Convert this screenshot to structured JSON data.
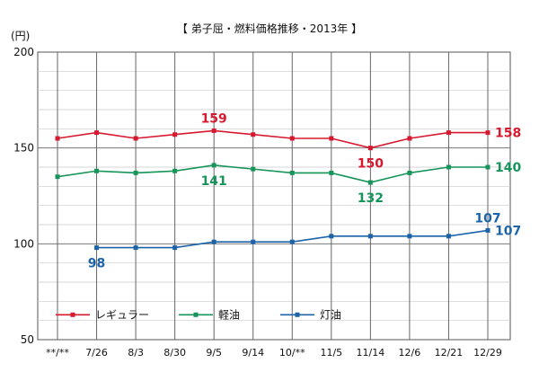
{
  "chart_data": {
    "type": "line",
    "title": "【 弟子屈・燃料価格推移・2013年 】",
    "ylabel": "(円)",
    "xlabel": "",
    "ylim": [
      50,
      200
    ],
    "yticks": [
      50,
      100,
      150,
      200
    ],
    "grid": true,
    "legend_position": "bottom-left",
    "categories": [
      "**/**",
      "7/26",
      "8/3",
      "8/30",
      "9/5",
      "9/14",
      "10/**",
      "11/5",
      "11/14",
      "12/6",
      "12/21",
      "12/29"
    ],
    "series": [
      {
        "name": "レギュラー",
        "color": "#d7192f",
        "values": [
          155,
          158,
          155,
          157,
          159,
          157,
          155,
          155,
          150,
          155,
          158,
          158
        ]
      },
      {
        "name": "軽油",
        "color": "#16945a",
        "values": [
          135,
          138,
          137,
          138,
          141,
          139,
          137,
          137,
          132,
          137,
          140,
          140
        ]
      },
      {
        "name": "灯油",
        "color": "#1c63a9",
        "values": [
          null,
          98,
          98,
          98,
          101,
          101,
          101,
          104,
          104,
          104,
          104,
          107
        ]
      }
    ],
    "data_labels": [
      {
        "series": 0,
        "index": 4,
        "text": "159",
        "pos": "above"
      },
      {
        "series": 0,
        "index": 8,
        "text": "150",
        "pos": "below"
      },
      {
        "series": 0,
        "index": 11,
        "text": "158",
        "pos": "right"
      },
      {
        "series": 1,
        "index": 4,
        "text": "141",
        "pos": "below"
      },
      {
        "series": 1,
        "index": 8,
        "text": "132",
        "pos": "below"
      },
      {
        "series": 1,
        "index": 11,
        "text": "140",
        "pos": "right"
      },
      {
        "series": 2,
        "index": 1,
        "text": "98",
        "pos": "below"
      },
      {
        "series": 2,
        "index": 11,
        "text": "107",
        "pos": "above"
      },
      {
        "series": 2,
        "index": 11,
        "text": "107",
        "pos": "right"
      }
    ]
  }
}
